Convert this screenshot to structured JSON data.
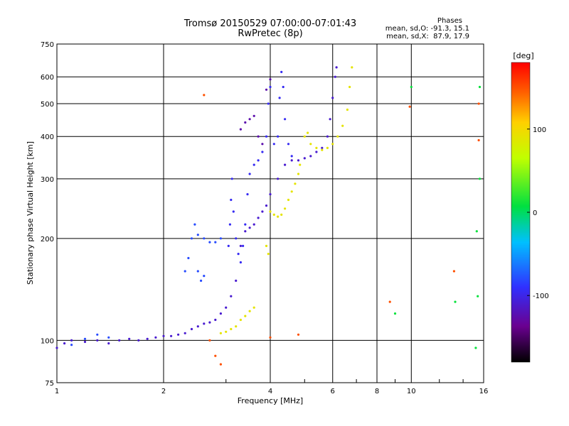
{
  "header": {
    "title_line1": "Tromsø 20150529 07:00:00-07:01:43",
    "title_line2": "RwPretec (8p)",
    "phases_label": "Phases",
    "phases_o": "mean, sd,O: -91.3, 15.1",
    "phases_x": "mean, sd,X:  87.9, 17.9"
  },
  "colorbar": {
    "unit": "[deg]",
    "tick_labels": [
      "100",
      "0",
      "-100"
    ],
    "tick_values": [
      100,
      0,
      -100
    ],
    "range": [
      -180,
      180
    ]
  },
  "chart_data": {
    "type": "scatter",
    "xlabel": "Frequency [MHz]",
    "ylabel": "Stationary phase Virtual Height [km]",
    "xscale": "log",
    "yscale": "log",
    "xlim": [
      1,
      16
    ],
    "ylim": [
      75,
      750
    ],
    "x_ticks": [
      1,
      2,
      4,
      6,
      8,
      10,
      16
    ],
    "x_tick_labels": [
      "1",
      "2",
      "4",
      "6",
      "8",
      "10",
      "16"
    ],
    "y_ticks": [
      75,
      100,
      200,
      300,
      400,
      500,
      600,
      750
    ],
    "y_tick_labels": [
      "75",
      "100",
      "200",
      "300",
      "400",
      "500",
      "600",
      "750"
    ],
    "grid": true,
    "color_dimension": "phase [deg]",
    "series": [
      {
        "phase_deg": -110,
        "points": [
          [
            1.0,
            95
          ],
          [
            1.05,
            98
          ],
          [
            1.1,
            100
          ],
          [
            1.2,
            99
          ],
          [
            1.3,
            100
          ],
          [
            1.4,
            98
          ],
          [
            1.5,
            100
          ],
          [
            1.6,
            101
          ],
          [
            1.7,
            100
          ],
          [
            1.8,
            101
          ],
          [
            1.9,
            102
          ],
          [
            2.0,
            103
          ],
          [
            2.1,
            103
          ],
          [
            2.2,
            104
          ],
          [
            2.3,
            105
          ],
          [
            2.4,
            108
          ],
          [
            2.5,
            110
          ],
          [
            2.6,
            112
          ],
          [
            2.7,
            113
          ],
          [
            2.8,
            115
          ],
          [
            2.9,
            120
          ],
          [
            3.0,
            125
          ],
          [
            3.1,
            135
          ],
          [
            3.2,
            150
          ],
          [
            3.3,
            190
          ],
          [
            3.4,
            210
          ],
          [
            3.5,
            215
          ],
          [
            3.6,
            220
          ],
          [
            3.7,
            230
          ],
          [
            3.8,
            240
          ],
          [
            3.9,
            250
          ],
          [
            4.0,
            270
          ],
          [
            4.2,
            300
          ],
          [
            4.4,
            330
          ],
          [
            4.6,
            340
          ],
          [
            4.8,
            340
          ],
          [
            5.0,
            345
          ],
          [
            5.2,
            350
          ],
          [
            5.4,
            360
          ],
          [
            5.6,
            370
          ],
          [
            5.8,
            400
          ],
          [
            5.9,
            450
          ],
          [
            6.0,
            520
          ],
          [
            6.1,
            600
          ],
          [
            6.15,
            640
          ]
        ]
      },
      {
        "phase_deg": -95,
        "points": [
          [
            3.05,
            190
          ],
          [
            3.08,
            220
          ],
          [
            3.1,
            260
          ],
          [
            3.12,
            300
          ],
          [
            3.15,
            240
          ],
          [
            3.2,
            200
          ],
          [
            3.25,
            180
          ],
          [
            3.3,
            170
          ],
          [
            3.35,
            190
          ],
          [
            3.4,
            220
          ],
          [
            3.45,
            270
          ],
          [
            3.5,
            310
          ],
          [
            3.6,
            330
          ],
          [
            3.7,
            340
          ],
          [
            3.8,
            360
          ],
          [
            3.9,
            400
          ],
          [
            3.95,
            500
          ],
          [
            4.0,
            560
          ],
          [
            4.1,
            380
          ],
          [
            4.2,
            400
          ],
          [
            4.25,
            520
          ],
          [
            4.3,
            620
          ],
          [
            4.35,
            560
          ],
          [
            4.4,
            450
          ],
          [
            4.5,
            380
          ],
          [
            4.6,
            350
          ]
        ]
      },
      {
        "phase_deg": -125,
        "points": [
          [
            3.3,
            420
          ],
          [
            3.4,
            440
          ],
          [
            3.5,
            450
          ],
          [
            3.6,
            460
          ],
          [
            3.7,
            400
          ],
          [
            3.8,
            380
          ],
          [
            3.9,
            550
          ],
          [
            4.0,
            590
          ]
        ]
      },
      {
        "phase_deg": -80,
        "points": [
          [
            1.1,
            97
          ],
          [
            1.2,
            101
          ],
          [
            1.3,
            104
          ],
          [
            1.4,
            102
          ],
          [
            2.3,
            160
          ],
          [
            2.35,
            175
          ],
          [
            2.4,
            200
          ],
          [
            2.45,
            220
          ],
          [
            2.5,
            205
          ],
          [
            2.6,
            200
          ],
          [
            2.7,
            195
          ],
          [
            2.8,
            195
          ],
          [
            2.9,
            200
          ],
          [
            2.5,
            160
          ],
          [
            2.55,
            150
          ],
          [
            2.6,
            155
          ]
        ]
      },
      {
        "phase_deg": 90,
        "points": [
          [
            2.9,
            105
          ],
          [
            3.0,
            106
          ],
          [
            3.1,
            108
          ],
          [
            3.2,
            110
          ],
          [
            3.3,
            115
          ],
          [
            3.4,
            118
          ],
          [
            3.5,
            122
          ],
          [
            3.6,
            125
          ],
          [
            3.9,
            190
          ],
          [
            3.95,
            180
          ],
          [
            4.0,
            240
          ],
          [
            4.1,
            235
          ],
          [
            4.2,
            232
          ],
          [
            4.3,
            235
          ],
          [
            4.4,
            245
          ],
          [
            4.5,
            260
          ],
          [
            4.6,
            275
          ],
          [
            4.7,
            290
          ],
          [
            4.8,
            310
          ],
          [
            4.85,
            330
          ],
          [
            5.0,
            400
          ],
          [
            5.1,
            410
          ],
          [
            5.2,
            380
          ],
          [
            5.4,
            370
          ],
          [
            5.6,
            365
          ],
          [
            5.8,
            370
          ],
          [
            6.0,
            380
          ],
          [
            6.2,
            400
          ],
          [
            6.4,
            430
          ],
          [
            6.6,
            480
          ],
          [
            6.7,
            560
          ],
          [
            6.8,
            640
          ]
        ]
      },
      {
        "phase_deg": 150,
        "points": [
          [
            2.6,
            530
          ],
          [
            2.7,
            100
          ],
          [
            2.8,
            90
          ],
          [
            2.9,
            85
          ],
          [
            4.0,
            102
          ],
          [
            4.8,
            104
          ],
          [
            8.7,
            130
          ],
          [
            9.9,
            490
          ],
          [
            13.2,
            160
          ],
          [
            15.5,
            500
          ],
          [
            15.5,
            390
          ]
        ]
      },
      {
        "phase_deg": 10,
        "points": [
          [
            9.0,
            120
          ],
          [
            10.0,
            560
          ],
          [
            13.3,
            130
          ],
          [
            15.4,
            135
          ],
          [
            15.6,
            300
          ],
          [
            15.6,
            560
          ],
          [
            15.3,
            210
          ],
          [
            15.2,
            95
          ]
        ]
      }
    ]
  }
}
